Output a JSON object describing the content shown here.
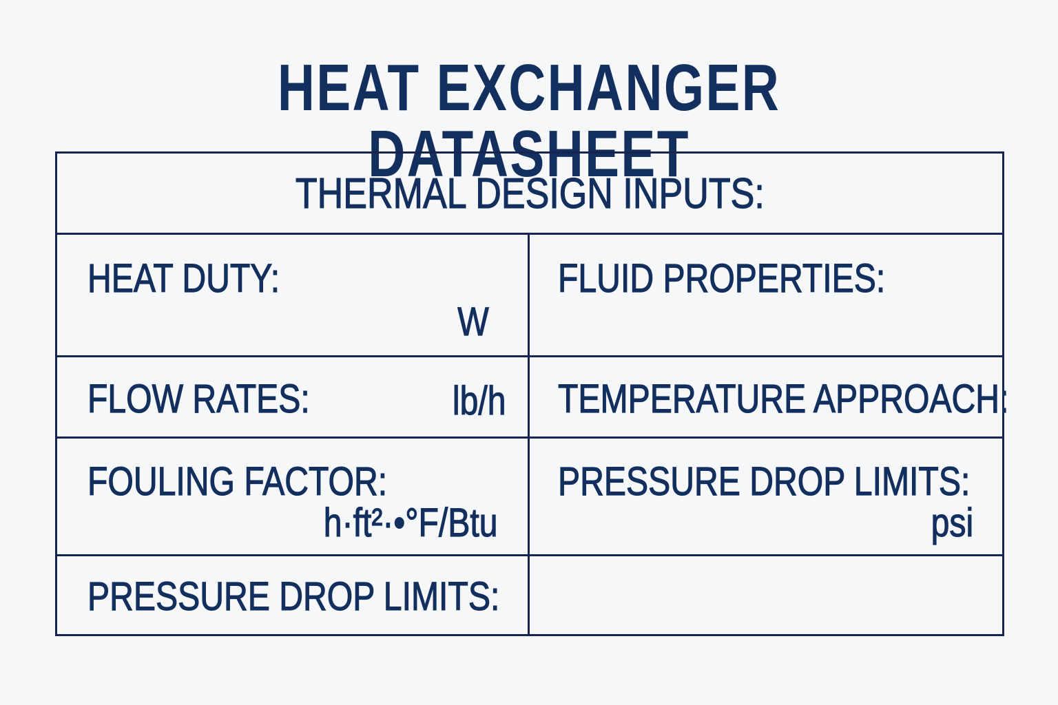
{
  "title": "HEAT EXCHANGER DATASHEET",
  "table": {
    "header": "THERMAL DESIGN INPUTS:",
    "cells": {
      "heat_duty": {
        "label": "HEAT DUTY:",
        "unit": "W"
      },
      "fluid_properties": {
        "label": "FLUID PROPERTIES:"
      },
      "flow_rates": {
        "label": "FLOW RATES:",
        "unit": "lb/h"
      },
      "temperature_approach": {
        "label": "TEMPERATURE APPROACH:"
      },
      "fouling_factor": {
        "label": "FOULING FACTOR:",
        "unit": "h·ft²·•°F/Btu"
      },
      "pressure_drop_limits_right": {
        "label": "PRESSURE DROP LIMITS:",
        "unit": "psi"
      },
      "pressure_drop_limits_left": {
        "label": "PRESSURE DROP LIMITS:"
      }
    }
  },
  "colors": {
    "text": "#132f5e",
    "border": "#16244f",
    "background": "#f6f7f9"
  }
}
